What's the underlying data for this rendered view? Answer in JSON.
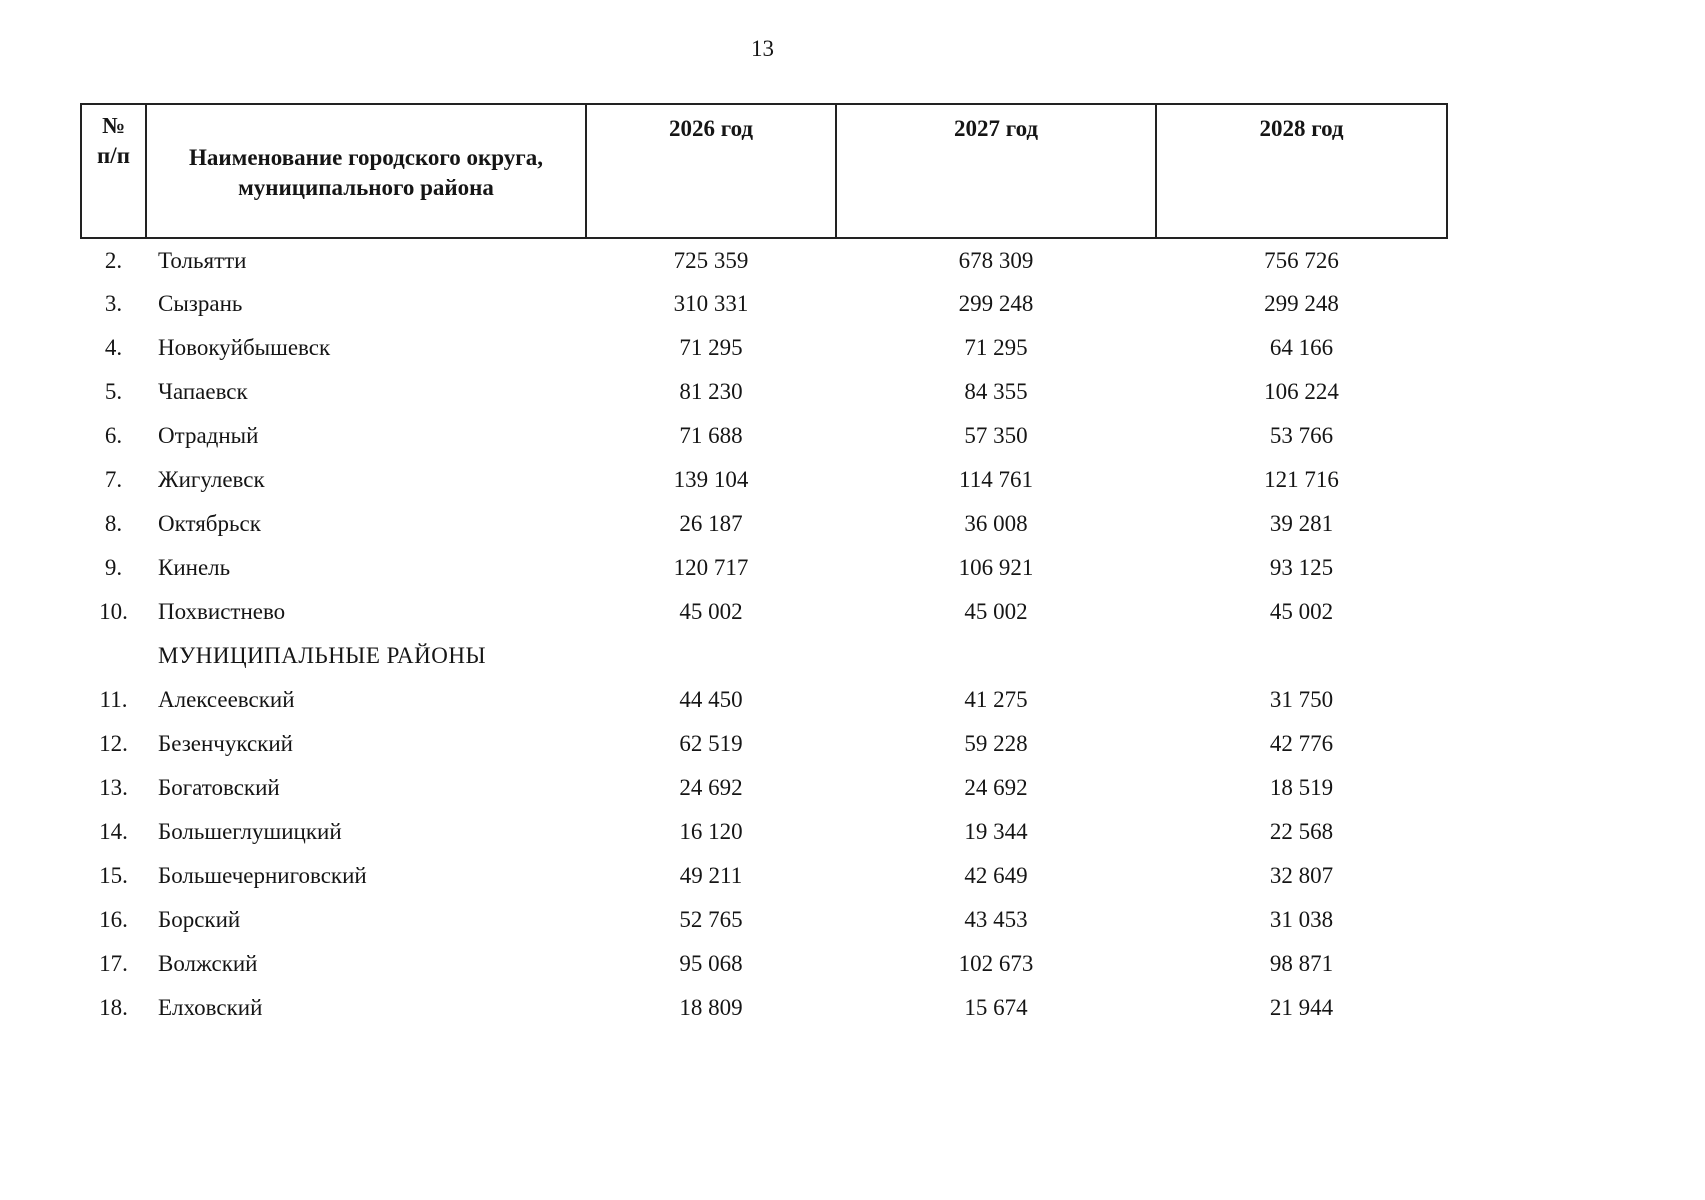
{
  "page": {
    "number": "13"
  },
  "table": {
    "headers": {
      "num": "№\nп/п",
      "name": "Наименование городского округа,\nмуниципального района",
      "years": [
        "2026 год",
        "2027 год",
        "2028 год"
      ]
    },
    "rows": [
      {
        "num": "2.",
        "name": "Тольятти",
        "values": [
          "725 359",
          "678 309",
          "756 726"
        ]
      },
      {
        "num": "3.",
        "name": "Сызрань",
        "values": [
          "310 331",
          "299 248",
          "299 248"
        ]
      },
      {
        "num": "4.",
        "name": "Новокуйбышевск",
        "values": [
          "71 295",
          "71 295",
          "64 166"
        ]
      },
      {
        "num": "5.",
        "name": "Чапаевск",
        "values": [
          "81 230",
          "84 355",
          "106 224"
        ]
      },
      {
        "num": "6.",
        "name": "Отрадный",
        "values": [
          "71 688",
          "57 350",
          "53 766"
        ]
      },
      {
        "num": "7.",
        "name": "Жигулевск",
        "values": [
          "139 104",
          "114 761",
          "121 716"
        ]
      },
      {
        "num": "8.",
        "name": "Октябрьск",
        "values": [
          "26 187",
          "36 008",
          "39 281"
        ]
      },
      {
        "num": "9.",
        "name": "Кинель",
        "values": [
          "120 717",
          "106 921",
          "93 125"
        ]
      },
      {
        "num": "10.",
        "name": "Похвистнево",
        "values": [
          "45 002",
          "45 002",
          "45 002"
        ]
      },
      {
        "section": true,
        "num": "",
        "name": "МУНИЦИПАЛЬНЫЕ РАЙОНЫ",
        "values": [
          "",
          "",
          ""
        ]
      },
      {
        "num": "11.",
        "name": "Алексеевский",
        "values": [
          "44 450",
          "41 275",
          "31 750"
        ]
      },
      {
        "num": "12.",
        "name": "Безенчукский",
        "values": [
          "62 519",
          "59 228",
          "42 776"
        ]
      },
      {
        "num": "13.",
        "name": "Богатовский",
        "values": [
          "24 692",
          "24 692",
          "18 519"
        ]
      },
      {
        "num": "14.",
        "name": "Большеглушицкий",
        "values": [
          "16 120",
          "19 344",
          "22 568"
        ]
      },
      {
        "num": "15.",
        "name": "Большечерниговский",
        "values": [
          "49 211",
          "42 649",
          "32 807"
        ]
      },
      {
        "num": "16.",
        "name": "Борский",
        "values": [
          "52 765",
          "43 453",
          "31 038"
        ]
      },
      {
        "num": "17.",
        "name": "Волжский",
        "values": [
          "95 068",
          "102 673",
          "98 871"
        ]
      },
      {
        "num": "18.",
        "name": "Елховский",
        "values": [
          "18 809",
          "15 674",
          "21 944"
        ]
      }
    ]
  }
}
